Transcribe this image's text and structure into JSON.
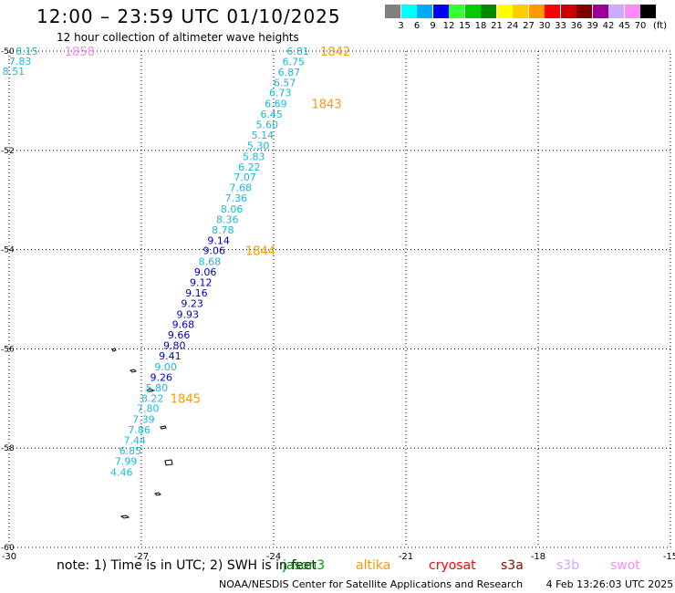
{
  "header": {
    "title": "12:00 – 23:59 UTC 01/10/2025",
    "subtitle": "12 hour collection of altimeter wave heights"
  },
  "colorbar": {
    "unit": "(ft)",
    "bins": [
      {
        "label": "3",
        "color": "#808080"
      },
      {
        "label": "6",
        "color": "#00ffff"
      },
      {
        "label": "9",
        "color": "#00aaff"
      },
      {
        "label": "12",
        "color": "#0000ff"
      },
      {
        "label": "15",
        "color": "#33ff33"
      },
      {
        "label": "18",
        "color": "#00cc00"
      },
      {
        "label": "21",
        "color": "#008800"
      },
      {
        "label": "24",
        "color": "#ffff00"
      },
      {
        "label": "27",
        "color": "#ffcc00"
      },
      {
        "label": "30",
        "color": "#ff9900"
      },
      {
        "label": "33",
        "color": "#ff0000"
      },
      {
        "label": "36",
        "color": "#cc0000"
      },
      {
        "label": "39",
        "color": "#800000"
      },
      {
        "label": "42",
        "color": "#990099"
      },
      {
        "label": "45",
        "color": "#ccaaff"
      },
      {
        "label": "70",
        "color": "#ff88ff"
      },
      {
        "label": "",
        "color": "#000000"
      }
    ]
  },
  "map": {
    "lon_range": [
      -30,
      -15
    ],
    "lat_range": [
      -60,
      -50
    ],
    "x_ticks": [
      "-30",
      "-27",
      "-24",
      "-21",
      "-18",
      "-15"
    ],
    "y_ticks": [
      "-50",
      "-52",
      "-54",
      "-56",
      "-58",
      "-60"
    ],
    "grid": "dotted"
  },
  "track": {
    "color_teal": "#1ab8dc",
    "color_blue": "#0000c8",
    "readings": [
      {
        "v": "6.81",
        "lon": -23.45,
        "lat": -50.0,
        "c": "teal"
      },
      {
        "v": "6.75",
        "lon": -23.55,
        "lat": -50.21,
        "c": "teal"
      },
      {
        "v": "6.87",
        "lon": -23.65,
        "lat": -50.42,
        "c": "teal"
      },
      {
        "v": "6.57",
        "lon": -23.75,
        "lat": -50.63,
        "c": "teal"
      },
      {
        "v": "6.73",
        "lon": -23.85,
        "lat": -50.84,
        "c": "teal"
      },
      {
        "v": "6.69",
        "lon": -23.95,
        "lat": -51.06,
        "c": "teal"
      },
      {
        "v": "6.45",
        "lon": -24.05,
        "lat": -51.27,
        "c": "teal"
      },
      {
        "v": "5.60",
        "lon": -24.15,
        "lat": -51.48,
        "c": "teal"
      },
      {
        "v": "5.14",
        "lon": -24.25,
        "lat": -51.69,
        "c": "teal"
      },
      {
        "v": "5.30",
        "lon": -24.35,
        "lat": -51.9,
        "c": "teal"
      },
      {
        "v": "5.83",
        "lon": -24.45,
        "lat": -52.12,
        "c": "teal"
      },
      {
        "v": "6.22",
        "lon": -24.55,
        "lat": -52.33,
        "c": "teal"
      },
      {
        "v": "7.07",
        "lon": -24.65,
        "lat": -52.54,
        "c": "teal"
      },
      {
        "v": "7.68",
        "lon": -24.75,
        "lat": -52.75,
        "c": "teal"
      },
      {
        "v": "7.36",
        "lon": -24.85,
        "lat": -52.96,
        "c": "teal"
      },
      {
        "v": "8.06",
        "lon": -24.95,
        "lat": -53.18,
        "c": "teal"
      },
      {
        "v": "8.36",
        "lon": -25.05,
        "lat": -53.39,
        "c": "teal"
      },
      {
        "v": "8.78",
        "lon": -25.15,
        "lat": -53.6,
        "c": "teal"
      },
      {
        "v": "9.14",
        "lon": -25.25,
        "lat": -53.81,
        "c": "blue"
      },
      {
        "v": "9.06",
        "lon": -25.35,
        "lat": -54.02,
        "c": "blue"
      },
      {
        "v": "8.68",
        "lon": -25.45,
        "lat": -54.24,
        "c": "teal"
      },
      {
        "v": "9.06",
        "lon": -25.55,
        "lat": -54.45,
        "c": "blue"
      },
      {
        "v": "9.12",
        "lon": -25.65,
        "lat": -54.66,
        "c": "blue"
      },
      {
        "v": "9.16",
        "lon": -25.75,
        "lat": -54.87,
        "c": "blue"
      },
      {
        "v": "9.23",
        "lon": -25.85,
        "lat": -55.08,
        "c": "blue"
      },
      {
        "v": "9.93",
        "lon": -25.95,
        "lat": -55.3,
        "c": "blue"
      },
      {
        "v": "9.68",
        "lon": -26.05,
        "lat": -55.51,
        "c": "blue"
      },
      {
        "v": "9.66",
        "lon": -26.15,
        "lat": -55.72,
        "c": "blue"
      },
      {
        "v": "9.80",
        "lon": -26.25,
        "lat": -55.93,
        "c": "blue"
      },
      {
        "v": "9.41",
        "lon": -26.35,
        "lat": -56.14,
        "c": "blue"
      },
      {
        "v": "9.00",
        "lon": -26.45,
        "lat": -56.36,
        "c": "teal"
      },
      {
        "v": "9.26",
        "lon": -26.55,
        "lat": -56.57,
        "c": "blue"
      },
      {
        "v": "5.80",
        "lon": -26.65,
        "lat": -56.78,
        "c": "teal"
      },
      {
        "v": "8.22",
        "lon": -26.75,
        "lat": -56.99,
        "c": "teal"
      },
      {
        "v": "7.80",
        "lon": -26.85,
        "lat": -57.2,
        "c": "teal"
      },
      {
        "v": "7.39",
        "lon": -26.95,
        "lat": -57.42,
        "c": "teal"
      },
      {
        "v": "7.86",
        "lon": -27.05,
        "lat": -57.63,
        "c": "teal"
      },
      {
        "v": "7.44",
        "lon": -27.15,
        "lat": -57.84,
        "c": "teal"
      },
      {
        "v": "6.85",
        "lon": -27.25,
        "lat": -58.05,
        "c": "teal"
      },
      {
        "v": "7.99",
        "lon": -27.35,
        "lat": -58.26,
        "c": "teal"
      },
      {
        "v": "4.46",
        "lon": -27.45,
        "lat": -58.48,
        "c": "teal"
      }
    ],
    "time_labels": [
      {
        "t": "1842",
        "lon": -22.6,
        "lat": -50.0
      },
      {
        "t": "1843",
        "lon": -22.8,
        "lat": -51.06
      },
      {
        "t": "1844",
        "lon": -24.3,
        "lat": -54.02
      },
      {
        "t": "1845",
        "lon": -26.0,
        "lat": -56.99
      }
    ]
  },
  "track2": {
    "color": "#1ab8dc",
    "readings": [
      {
        "v": "8.15",
        "lon": -29.6,
        "lat": -50.0
      },
      {
        "v": "7.83",
        "lon": -29.75,
        "lat": -50.2
      },
      {
        "v": "8.51",
        "lon": -29.9,
        "lat": -50.4
      }
    ],
    "time_label": {
      "t": "1858",
      "lon": -28.4,
      "lat": -50.0
    }
  },
  "footer": {
    "note": "note: 1) Time is in UTC; 2) SWH is in feet",
    "satellites": [
      {
        "name": "jason3",
        "color": "#009900"
      },
      {
        "name": "altika",
        "color": "#ff9900"
      },
      {
        "name": "cryosat",
        "color": "#ff0000"
      },
      {
        "name": "s3a",
        "color": "#990000"
      },
      {
        "name": "s3b",
        "color": "#ccaaff"
      },
      {
        "name": "swot",
        "color": "#ff88ff"
      }
    ]
  },
  "credit": {
    "org": "NOAA/NESDIS Center for Satellite Applications and Research",
    "timestamp": "4 Feb 13:26:03 UTC 2025"
  }
}
